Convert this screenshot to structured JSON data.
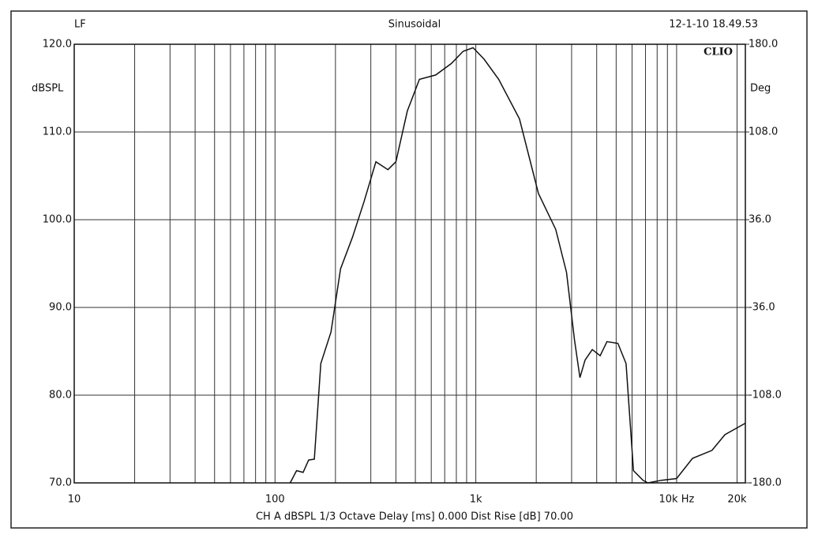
{
  "chart_data": {
    "type": "line",
    "header_left": "LF",
    "title": "Sinusoidal",
    "timestamp": "12-1-10 18.49.53",
    "brand": "CLIO",
    "ylabel": "dBSPL",
    "y2label": "Deg",
    "footer": "CH A   dBSPL   1/3 Octave   Delay [ms] 0.000   Dist Rise [dB] 70.00",
    "xscale": "log",
    "grid": true,
    "xlim": [
      10,
      22000
    ],
    "xticks": [
      10,
      100,
      {
        "value": 1000,
        "label": "1k"
      },
      {
        "value": 10000,
        "label": "10k  Hz"
      },
      {
        "value": 20000,
        "label": "20k"
      }
    ],
    "xgrid_minor": [
      20,
      30,
      40,
      50,
      60,
      70,
      80,
      90,
      200,
      300,
      400,
      500,
      600,
      700,
      800,
      900,
      2000,
      3000,
      4000,
      5000,
      6000,
      7000,
      8000,
      9000
    ],
    "ylim": [
      70,
      120
    ],
    "yticks": [
      {
        "value": 70,
        "label": "70.0"
      },
      {
        "value": 80,
        "label": "80.0"
      },
      {
        "value": 90,
        "label": "90.0"
      },
      {
        "value": 100,
        "label": "100.0"
      },
      {
        "value": 110,
        "label": "110.0"
      },
      {
        "value": 120,
        "label": "120.0"
      }
    ],
    "y2lim": [
      -180,
      180
    ],
    "y2ticks": [
      {
        "value": -180,
        "label": "-180.0"
      },
      {
        "value": -108,
        "label": "-108.0"
      },
      {
        "value": -36,
        "label": "-36.0"
      },
      {
        "value": 36,
        "label": "36.0"
      },
      {
        "value": 108,
        "label": "108.0"
      },
      {
        "value": 180,
        "label": "180.0"
      }
    ],
    "series": [
      {
        "color": "#111111",
        "x": [
          119,
          128,
          138,
          147,
          157,
          169,
          190,
          212,
          243,
          278,
          318,
          365,
          400,
          456,
          524,
          631,
          755,
          865,
          970,
          1100,
          1300,
          1650,
          2050,
          2500,
          2830,
          3100,
          3300,
          3500,
          3800,
          4160,
          4500,
          5100,
          5600,
          6100,
          6800,
          7200,
          8400,
          10000,
          12000,
          15000,
          17400,
          22000
        ],
        "values": [
          70,
          71.4,
          71.2,
          72.6,
          72.7,
          83.6,
          87.2,
          94.4,
          98,
          102.1,
          106.6,
          105.7,
          106.6,
          112.4,
          116,
          116.5,
          117.8,
          119.2,
          119.6,
          118.3,
          116,
          111.5,
          103,
          98.9,
          94,
          86.3,
          82,
          84,
          85.2,
          84.5,
          86.1,
          85.9,
          83.6,
          71.4,
          70.3,
          70,
          70.3,
          70.5,
          72.8,
          73.7,
          75.5,
          76.8
        ]
      }
    ]
  }
}
